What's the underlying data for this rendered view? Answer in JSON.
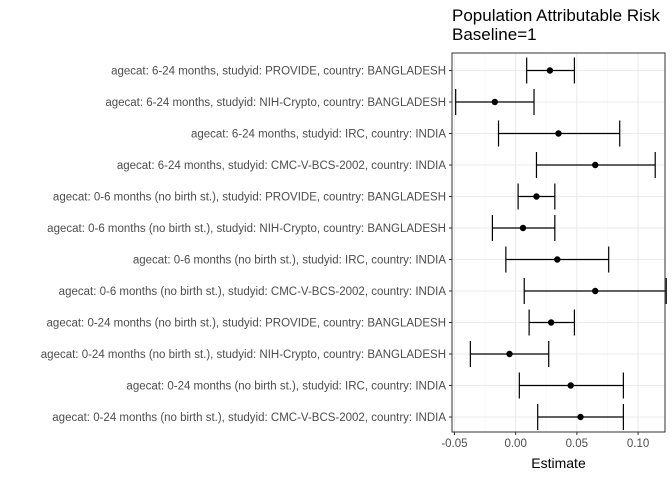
{
  "chart_data": {
    "type": "scatter",
    "subtype": "forest-plot",
    "title": "Population Attributable Risk",
    "subtitle": "Baseline=1",
    "xlabel": "Estimate",
    "ylabel": "",
    "xlim": [
      -0.052,
      0.122
    ],
    "xticks": [
      -0.05,
      0.0,
      0.05,
      0.1
    ],
    "xtick_labels": [
      "-0.05",
      "0.00",
      "0.05",
      "0.10"
    ],
    "grid": true,
    "colors": {
      "panel_border": "#333333",
      "grid_major": "#ebebeb",
      "grid_minor": "#f5f5f5",
      "mark": "#000000"
    },
    "points": [
      {
        "label": "agecat: 6-24 months, studyid: PROVIDE, country: BANGLADESH",
        "estimate": 0.028,
        "lower": 0.009,
        "upper": 0.048
      },
      {
        "label": "agecat: 6-24 months, studyid: NIH-Crypto, country: BANGLADESH",
        "estimate": -0.017,
        "lower": -0.049,
        "upper": 0.015
      },
      {
        "label": "agecat: 6-24 months, studyid: IRC, country: INDIA",
        "estimate": 0.035,
        "lower": -0.014,
        "upper": 0.085
      },
      {
        "label": "agecat: 6-24 months, studyid: CMC-V-BCS-2002, country: INDIA",
        "estimate": 0.065,
        "lower": 0.017,
        "upper": 0.114
      },
      {
        "label": "agecat: 0-6 months (no birth st.), studyid: PROVIDE, country: BANGLADESH",
        "estimate": 0.017,
        "lower": 0.002,
        "upper": 0.032
      },
      {
        "label": "agecat: 0-6 months (no birth st.), studyid: NIH-Crypto, country: BANGLADESH",
        "estimate": 0.006,
        "lower": -0.019,
        "upper": 0.032
      },
      {
        "label": "agecat: 0-6 months (no birth st.), studyid: IRC, country: INDIA",
        "estimate": 0.034,
        "lower": -0.008,
        "upper": 0.076
      },
      {
        "label": "agecat: 0-6 months (no birth st.), studyid: CMC-V-BCS-2002, country: INDIA",
        "estimate": 0.065,
        "lower": 0.007,
        "upper": 0.123
      },
      {
        "label": "agecat: 0-24 months (no birth st.), studyid: PROVIDE, country: BANGLADESH",
        "estimate": 0.029,
        "lower": 0.011,
        "upper": 0.048
      },
      {
        "label": "agecat: 0-24 months (no birth st.), studyid: NIH-Crypto, country: BANGLADESH",
        "estimate": -0.005,
        "lower": -0.037,
        "upper": 0.027
      },
      {
        "label": "agecat: 0-24 months (no birth st.), studyid: IRC, country: INDIA",
        "estimate": 0.045,
        "lower": 0.003,
        "upper": 0.088
      },
      {
        "label": "agecat: 0-24 months (no birth st.), studyid: CMC-V-BCS-2002, country: INDIA",
        "estimate": 0.053,
        "lower": 0.018,
        "upper": 0.088
      }
    ]
  }
}
